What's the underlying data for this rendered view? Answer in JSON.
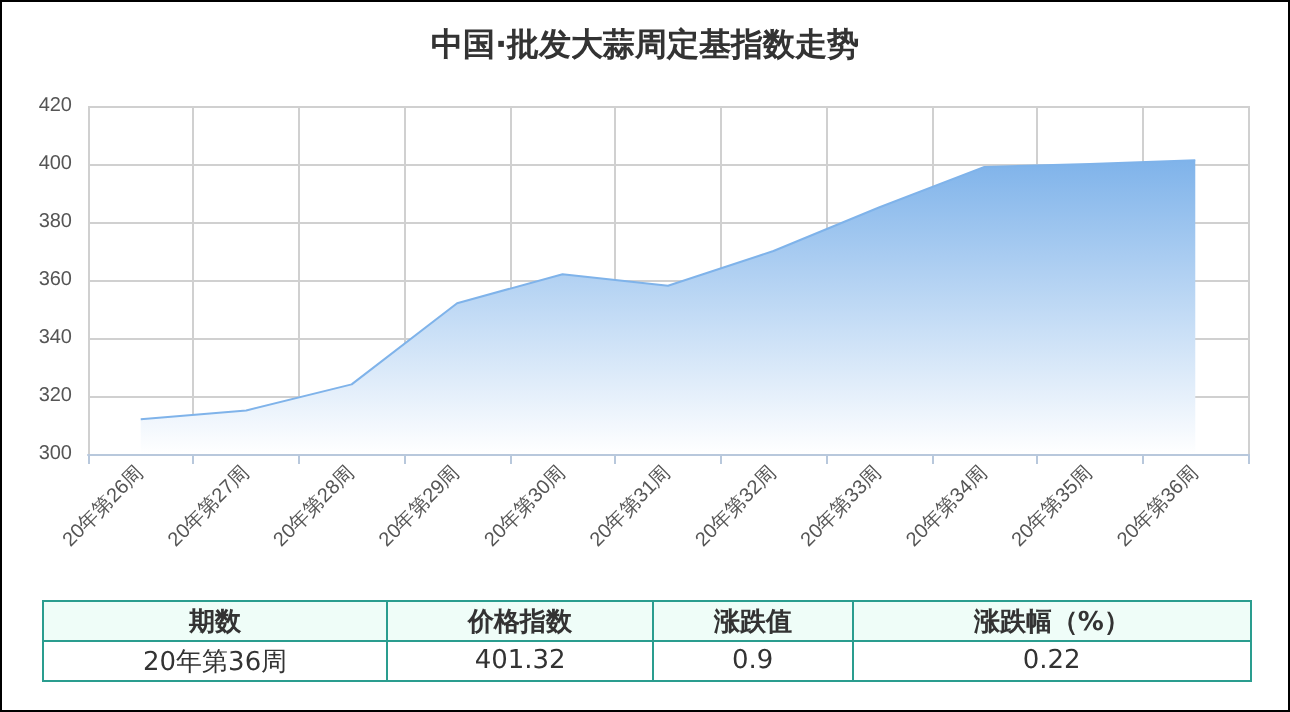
{
  "chart_data": {
    "type": "area",
    "title": "中国·批发大蒜周定基指数走势",
    "categories": [
      "20年第26周",
      "20年第27周",
      "20年第28周",
      "20年第29周",
      "20年第30周",
      "20年第31周",
      "20年第32周",
      "20年第33周",
      "20年第34周",
      "20年第35周",
      "20年第36周"
    ],
    "series": [
      {
        "color": "#7fb3ea",
        "values": [
          312,
          315,
          324,
          352,
          362,
          358,
          370,
          385,
          399,
          400,
          401.32
        ]
      }
    ],
    "ylim": [
      300,
      420
    ],
    "yticks": [
      300,
      320,
      340,
      360,
      380,
      400,
      420
    ],
    "grid": true,
    "marker": "none",
    "annotations": [
      "期数",
      "价格指数",
      "涨跌值",
      "涨跌幅（%）",
      "20年第36周",
      "401.32",
      "0.9",
      "0.22"
    ]
  }
}
